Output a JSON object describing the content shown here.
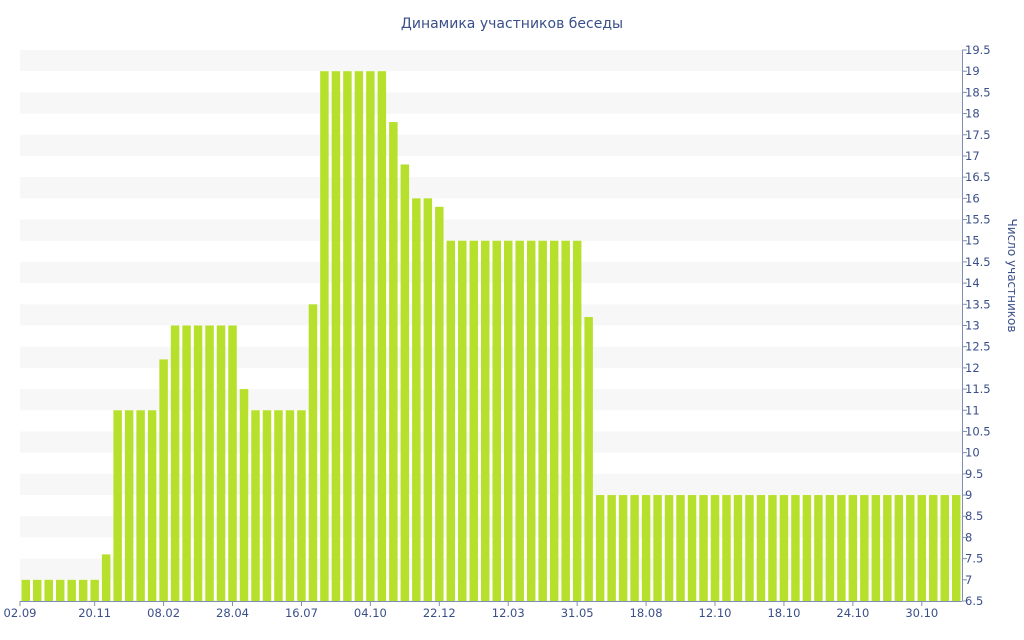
{
  "chart_data": {
    "type": "bar",
    "title": "Динамика участников беседы",
    "ylabel": "Число участников",
    "xlabel": "",
    "ylim": [
      6.5,
      19.5
    ],
    "y_ticks": [
      "6.5",
      "7",
      "7.5",
      "8",
      "8.5",
      "9",
      "9.5",
      "10",
      "10.5",
      "11",
      "11.5",
      "12",
      "12.5",
      "13",
      "13.5",
      "14",
      "14.5",
      "15",
      "15.5",
      "16",
      "16.5",
      "17",
      "17.5",
      "18",
      "18.5",
      "19",
      "19.5"
    ],
    "x_tick_labels": [
      {
        "label": "02.09",
        "index": 0
      },
      {
        "label": "20.11",
        "index": 6
      },
      {
        "label": "08.02",
        "index": 12
      },
      {
        "label": "28.04",
        "index": 18
      },
      {
        "label": "16.07",
        "index": 24
      },
      {
        "label": "04.10",
        "index": 30
      },
      {
        "label": "22.12",
        "index": 36
      },
      {
        "label": "12.03",
        "index": 42
      },
      {
        "label": "31.05",
        "index": 48
      },
      {
        "label": "18.08",
        "index": 54
      },
      {
        "label": "12.10",
        "index": 60
      },
      {
        "label": "18.10",
        "index": 66
      },
      {
        "label": "24.10",
        "index": 72
      },
      {
        "label": "30.10",
        "index": 78
      }
    ],
    "values": [
      7,
      7,
      7,
      7,
      7,
      7,
      7,
      7.6,
      11,
      11,
      11,
      11,
      12.2,
      13,
      13,
      13,
      13,
      13,
      13,
      11.5,
      11,
      11,
      11,
      11,
      11,
      13.5,
      19,
      19,
      19,
      19,
      19,
      19,
      17.8,
      16.8,
      16,
      16,
      15.8,
      15,
      15,
      15,
      15,
      15,
      15,
      15,
      15,
      15,
      15,
      15,
      15,
      13.2,
      9,
      9,
      9,
      9,
      9,
      9,
      9,
      9,
      9,
      9,
      9,
      9,
      9,
      9,
      9,
      9,
      9,
      9,
      9,
      9,
      9,
      9,
      9,
      9,
      9,
      9,
      9,
      9,
      9,
      9,
      9,
      9
    ],
    "colors": {
      "bar": "#b7e02c",
      "text": "#3a4f8a",
      "band": "#f7f7f7",
      "axis": "#7f8fb3"
    },
    "grid": "horizontal bands",
    "legend": "none",
    "y_axis_side": "right"
  }
}
